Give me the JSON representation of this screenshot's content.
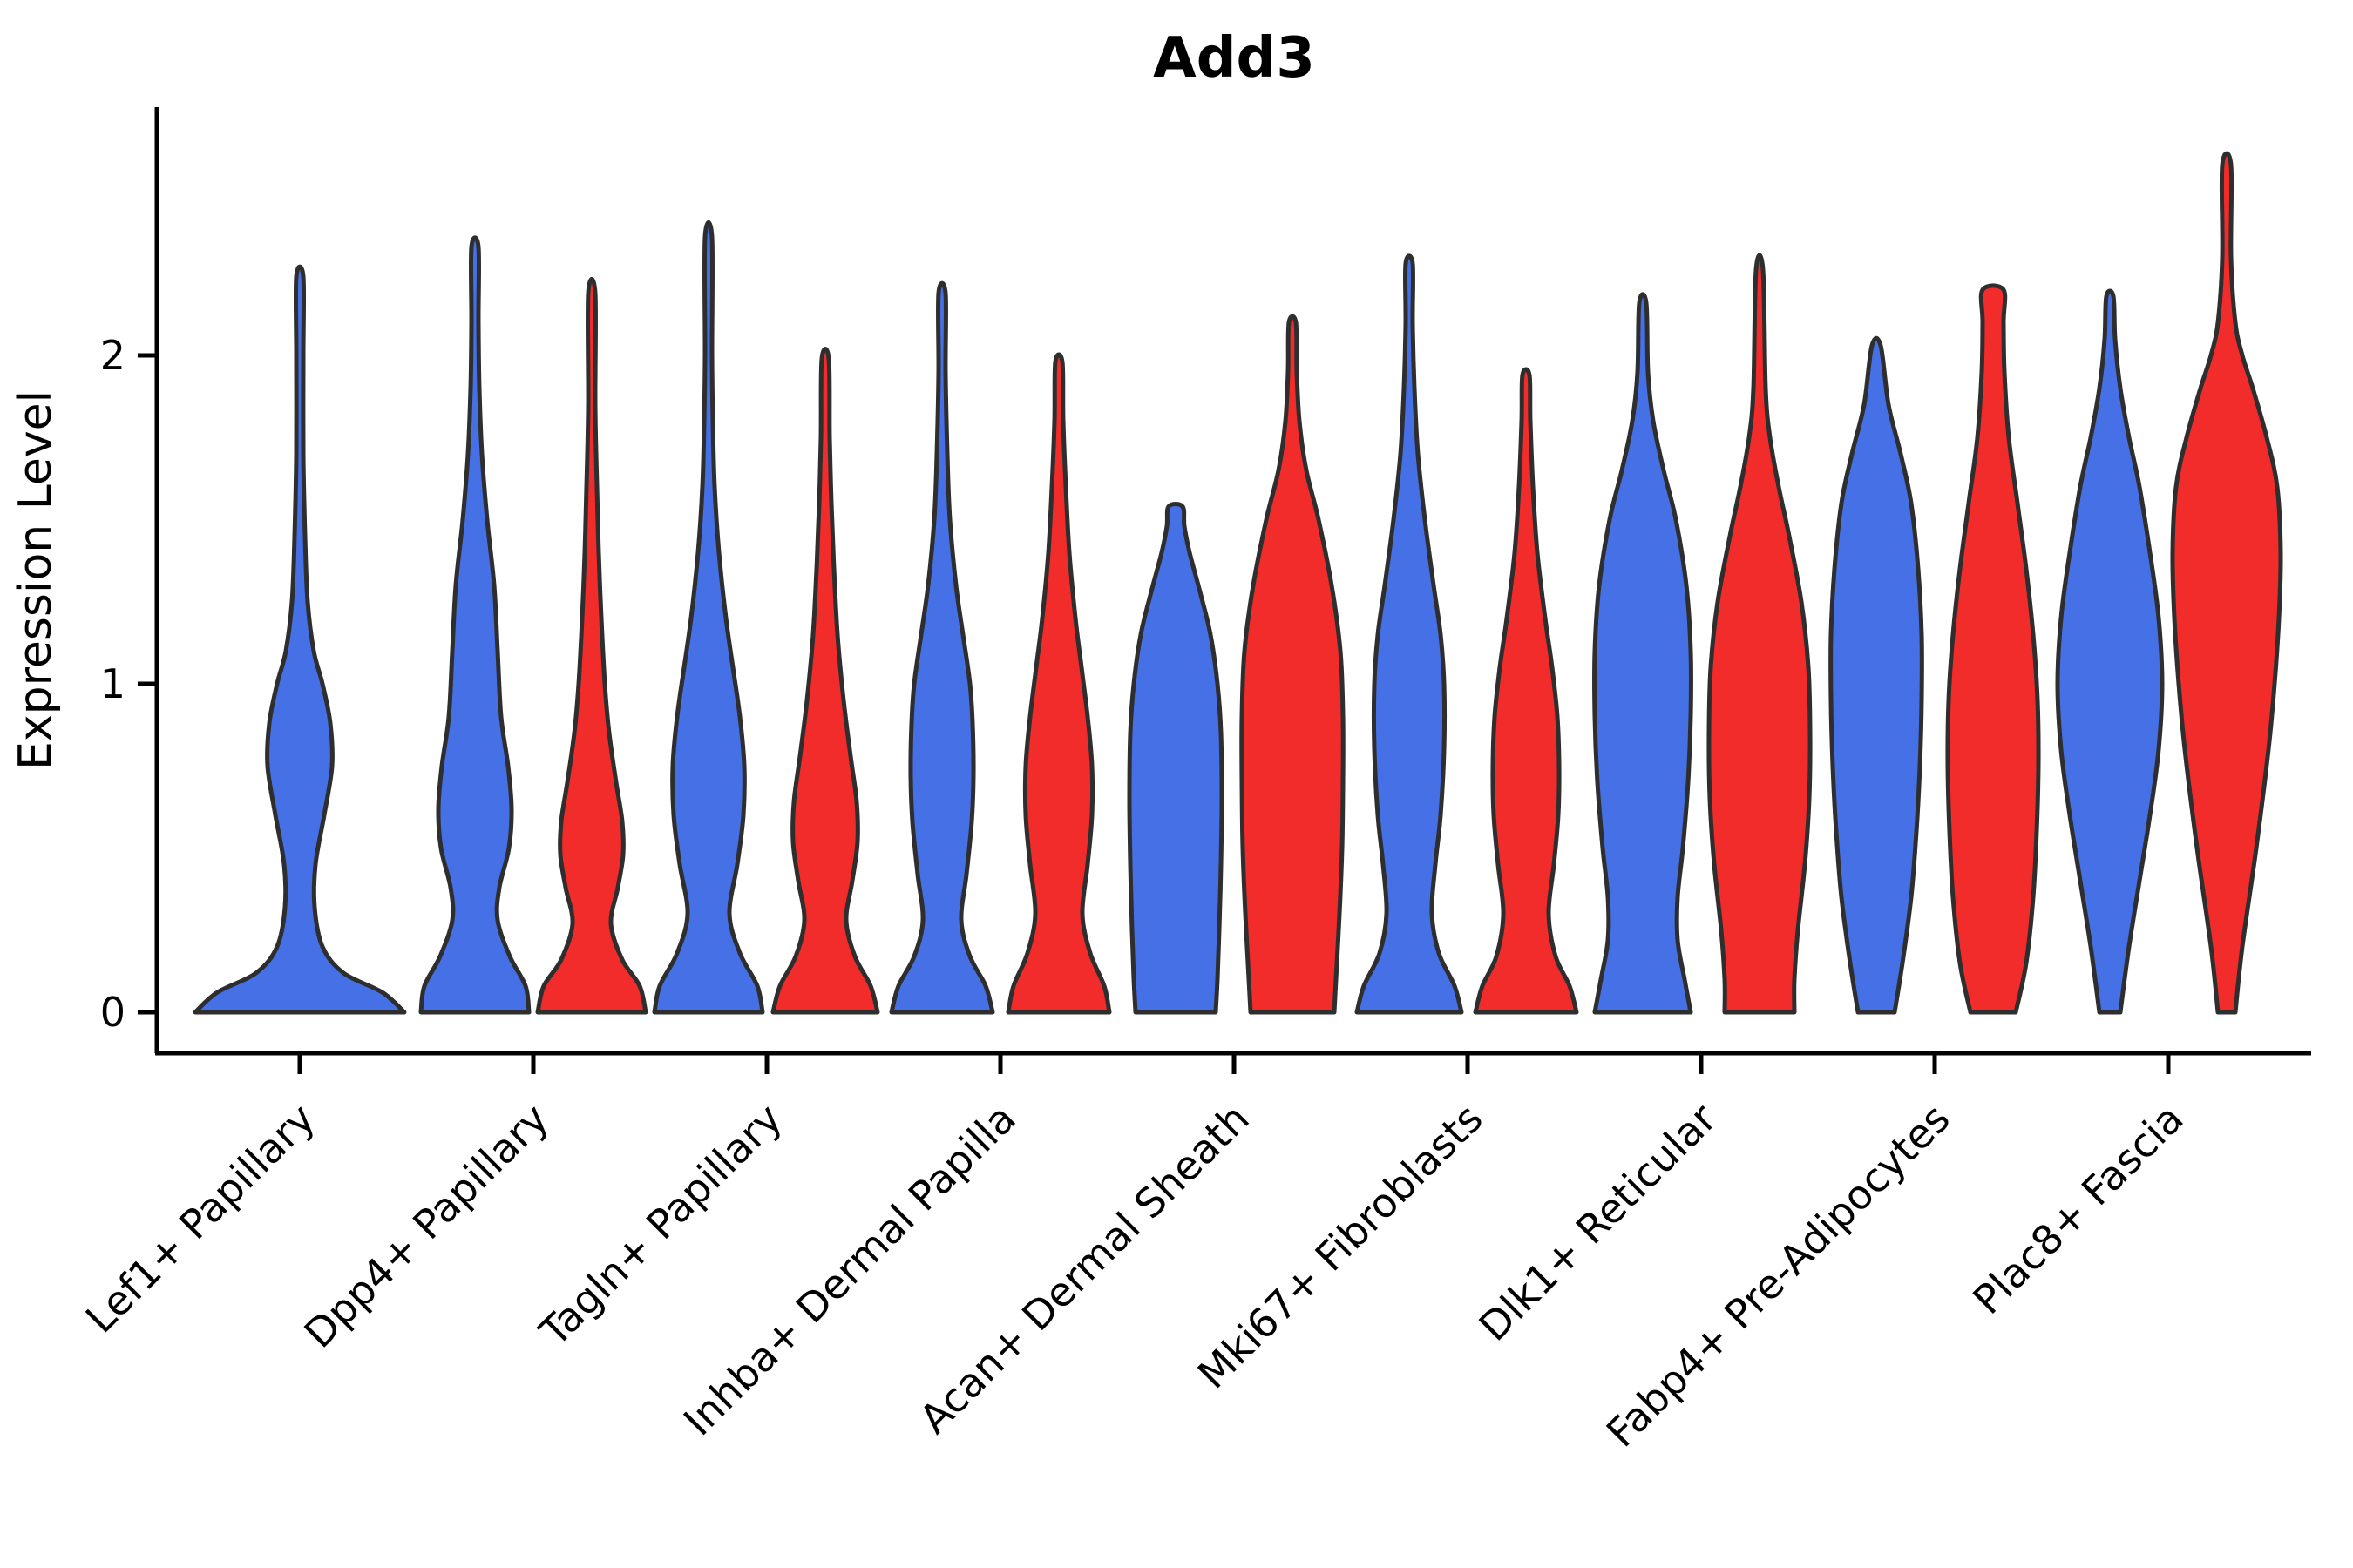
{
  "title": "Add3",
  "ylabel": "Expression Level",
  "colors": {
    "blue": "#4570E6",
    "red": "#F22B2B",
    "outline": "#2E2E2E",
    "text": "#000000"
  },
  "chart_data": {
    "type": "violin",
    "title": "Add3",
    "ylabel": "Expression Level",
    "xlabel": "",
    "ylim": [
      -0.125,
      2.76
    ],
    "yticks": [
      0,
      1,
      2
    ],
    "grid": false,
    "legend": "none",
    "categories": [
      "Lef1+ Papillary",
      "Dpp4+ Papillary",
      "Tagln+ Papillary",
      "Inhba+ Dermal Papilla",
      "Acan+ Dermal Sheath",
      "Mki67+ Fibroblasts",
      "Dlk1+ Reticular",
      "Fabp4+ Pre-Adipocytes",
      "Plac8+ Fascia"
    ],
    "series": [
      {
        "name": "blue",
        "color": "#4570E6",
        "violins": [
          {
            "max": 2.24,
            "profile": [
              [
                0,
                120
              ],
              [
                0.06,
                95
              ],
              [
                0.12,
                50
              ],
              [
                0.2,
                26
              ],
              [
                0.32,
                17
              ],
              [
                0.45,
                18
              ],
              [
                0.6,
                28
              ],
              [
                0.75,
                37
              ],
              [
                0.88,
                35
              ],
              [
                1.0,
                26
              ],
              [
                1.1,
                16
              ],
              [
                1.25,
                9
              ],
              [
                1.45,
                6
              ],
              [
                1.7,
                4
              ],
              [
                2.0,
                4
              ],
              [
                2.24,
                4
              ]
            ]
          },
          {
            "max": 2.33,
            "profile": [
              [
                0,
                62
              ],
              [
                0.08,
                58
              ],
              [
                0.17,
                40
              ],
              [
                0.28,
                26
              ],
              [
                0.38,
                28
              ],
              [
                0.5,
                39
              ],
              [
                0.62,
                42
              ],
              [
                0.75,
                38
              ],
              [
                0.9,
                30
              ],
              [
                1.1,
                26
              ],
              [
                1.3,
                22
              ],
              [
                1.5,
                14
              ],
              [
                1.7,
                8
              ],
              [
                1.9,
                5
              ],
              [
                2.1,
                4
              ],
              [
                2.33,
                4
              ]
            ]
          },
          {
            "max": 2.36,
            "profile": [
              [
                0,
                62
              ],
              [
                0.08,
                56
              ],
              [
                0.18,
                36
              ],
              [
                0.3,
                24
              ],
              [
                0.45,
                33
              ],
              [
                0.6,
                40
              ],
              [
                0.75,
                41
              ],
              [
                0.9,
                36
              ],
              [
                1.05,
                28
              ],
              [
                1.2,
                20
              ],
              [
                1.4,
                12
              ],
              [
                1.6,
                7
              ],
              [
                1.8,
                5
              ],
              [
                2.0,
                4
              ],
              [
                2.36,
                4
              ]
            ]
          },
          {
            "max": 2.19,
            "profile": [
              [
                0,
                58
              ],
              [
                0.08,
                50
              ],
              [
                0.17,
                32
              ],
              [
                0.28,
                22
              ],
              [
                0.42,
                28
              ],
              [
                0.58,
                34
              ],
              [
                0.72,
                36
              ],
              [
                0.88,
                35
              ],
              [
                1.0,
                32
              ],
              [
                1.15,
                24
              ],
              [
                1.3,
                16
              ],
              [
                1.5,
                9
              ],
              [
                1.7,
                6
              ],
              [
                1.95,
                4
              ],
              [
                2.19,
                4
              ]
            ]
          },
          {
            "max": 1.54,
            "profile": [
              [
                0,
                46
              ],
              [
                0.1,
                48
              ],
              [
                0.25,
                50
              ],
              [
                0.45,
                52
              ],
              [
                0.65,
                53
              ],
              [
                0.85,
                52
              ],
              [
                1.0,
                48
              ],
              [
                1.15,
                40
              ],
              [
                1.28,
                28
              ],
              [
                1.4,
                16
              ],
              [
                1.48,
                10
              ],
              [
                1.54,
                8
              ]
            ]
          },
          {
            "max": 2.28,
            "profile": [
              [
                0,
                60
              ],
              [
                0.08,
                52
              ],
              [
                0.18,
                34
              ],
              [
                0.3,
                26
              ],
              [
                0.45,
                30
              ],
              [
                0.6,
                36
              ],
              [
                0.8,
                40
              ],
              [
                1.0,
                40
              ],
              [
                1.15,
                36
              ],
              [
                1.3,
                28
              ],
              [
                1.5,
                18
              ],
              [
                1.7,
                10
              ],
              [
                1.9,
                6
              ],
              [
                2.1,
                4
              ],
              [
                2.28,
                4
              ]
            ]
          },
          {
            "max": 2.16,
            "profile": [
              [
                0,
                55
              ],
              [
                0.1,
                48
              ],
              [
                0.22,
                40
              ],
              [
                0.35,
                40
              ],
              [
                0.5,
                46
              ],
              [
                0.7,
                52
              ],
              [
                0.9,
                55
              ],
              [
                1.1,
                55
              ],
              [
                1.3,
                50
              ],
              [
                1.5,
                38
              ],
              [
                1.65,
                24
              ],
              [
                1.8,
                12
              ],
              [
                1.95,
                6
              ],
              [
                2.16,
                4
              ]
            ]
          },
          {
            "max": 2.03,
            "profile": [
              [
                0,
                21
              ],
              [
                0.15,
                30
              ],
              [
                0.35,
                40
              ],
              [
                0.55,
                46
              ],
              [
                0.75,
                50
              ],
              [
                0.95,
                52
              ],
              [
                1.15,
                52
              ],
              [
                1.35,
                48
              ],
              [
                1.55,
                40
              ],
              [
                1.7,
                28
              ],
              [
                1.85,
                14
              ],
              [
                2.03,
                5
              ]
            ]
          },
          {
            "max": 2.18,
            "profile": [
              [
                0,
                12
              ],
              [
                0.2,
                22
              ],
              [
                0.4,
                34
              ],
              [
                0.6,
                46
              ],
              [
                0.8,
                56
              ],
              [
                1.0,
                60
              ],
              [
                1.2,
                56
              ],
              [
                1.4,
                46
              ],
              [
                1.6,
                34
              ],
              [
                1.75,
                22
              ],
              [
                1.9,
                12
              ],
              [
                2.05,
                6
              ],
              [
                2.18,
                4
              ]
            ]
          }
        ]
      },
      {
        "name": "red",
        "color": "#F22B2B",
        "violins": [
          null,
          {
            "max": 2.19,
            "profile": [
              [
                0,
                62
              ],
              [
                0.08,
                55
              ],
              [
                0.16,
                35
              ],
              [
                0.27,
                22
              ],
              [
                0.38,
                30
              ],
              [
                0.48,
                36
              ],
              [
                0.58,
                35
              ],
              [
                0.7,
                28
              ],
              [
                0.85,
                20
              ],
              [
                1.0,
                15
              ],
              [
                1.2,
                11
              ],
              [
                1.4,
                8
              ],
              [
                1.6,
                6
              ],
              [
                1.85,
                4
              ],
              [
                2.19,
                4
              ]
            ]
          },
          {
            "max": 1.99,
            "profile": [
              [
                0,
                60
              ],
              [
                0.08,
                52
              ],
              [
                0.17,
                34
              ],
              [
                0.28,
                24
              ],
              [
                0.4,
                31
              ],
              [
                0.52,
                37
              ],
              [
                0.64,
                36
              ],
              [
                0.78,
                29
              ],
              [
                0.95,
                21
              ],
              [
                1.15,
                14
              ],
              [
                1.35,
                10
              ],
              [
                1.55,
                7
              ],
              [
                1.75,
                5
              ],
              [
                1.99,
                4
              ]
            ]
          },
          {
            "max": 1.98,
            "profile": [
              [
                0,
                58
              ],
              [
                0.08,
                52
              ],
              [
                0.18,
                36
              ],
              [
                0.3,
                27
              ],
              [
                0.45,
                33
              ],
              [
                0.6,
                38
              ],
              [
                0.75,
                38
              ],
              [
                0.9,
                33
              ],
              [
                1.05,
                26
              ],
              [
                1.2,
                19
              ],
              [
                1.4,
                12
              ],
              [
                1.6,
                8
              ],
              [
                1.8,
                5
              ],
              [
                1.98,
                4
              ]
            ]
          },
          {
            "max": 2.1,
            "profile": [
              [
                0,
                48
              ],
              [
                0.1,
                50
              ],
              [
                0.3,
                54
              ],
              [
                0.5,
                57
              ],
              [
                0.7,
                58
              ],
              [
                0.9,
                58
              ],
              [
                1.1,
                55
              ],
              [
                1.3,
                45
              ],
              [
                1.5,
                30
              ],
              [
                1.65,
                16
              ],
              [
                1.8,
                8
              ],
              [
                1.95,
                5
              ],
              [
                2.1,
                4
              ]
            ]
          },
          {
            "max": 1.94,
            "profile": [
              [
                0,
                58
              ],
              [
                0.08,
                50
              ],
              [
                0.17,
                34
              ],
              [
                0.3,
                26
              ],
              [
                0.45,
                32
              ],
              [
                0.6,
                37
              ],
              [
                0.75,
                38
              ],
              [
                0.9,
                36
              ],
              [
                1.05,
                30
              ],
              [
                1.2,
                22
              ],
              [
                1.4,
                13
              ],
              [
                1.6,
                8
              ],
              [
                1.8,
                5
              ],
              [
                1.94,
                4
              ]
            ]
          },
          {
            "max": 2.26,
            "profile": [
              [
                0,
                40
              ],
              [
                0.1,
                40
              ],
              [
                0.25,
                44
              ],
              [
                0.45,
                52
              ],
              [
                0.65,
                57
              ],
              [
                0.85,
                58
              ],
              [
                1.05,
                56
              ],
              [
                1.25,
                48
              ],
              [
                1.45,
                34
              ],
              [
                1.6,
                22
              ],
              [
                1.75,
                12
              ],
              [
                1.9,
                7
              ],
              [
                2.26,
                4
              ]
            ]
          },
          {
            "max": 2.2,
            "profile": [
              [
                0,
                26
              ],
              [
                0.15,
                38
              ],
              [
                0.35,
                46
              ],
              [
                0.55,
                50
              ],
              [
                0.75,
                52
              ],
              [
                0.95,
                51
              ],
              [
                1.15,
                46
              ],
              [
                1.35,
                38
              ],
              [
                1.55,
                28
              ],
              [
                1.75,
                18
              ],
              [
                1.95,
                13
              ],
              [
                2.1,
                12
              ],
              [
                2.2,
                12
              ]
            ]
          },
          {
            "max": 2.58,
            "profile": [
              [
                0,
                10
              ],
              [
                0.2,
                18
              ],
              [
                0.5,
                34
              ],
              [
                0.8,
                48
              ],
              [
                1.0,
                55
              ],
              [
                1.2,
                60
              ],
              [
                1.4,
                62
              ],
              [
                1.6,
                58
              ],
              [
                1.75,
                46
              ],
              [
                1.9,
                30
              ],
              [
                2.0,
                18
              ],
              [
                2.1,
                10
              ],
              [
                2.3,
                5
              ],
              [
                2.58,
                5
              ]
            ]
          }
        ]
      }
    ]
  }
}
